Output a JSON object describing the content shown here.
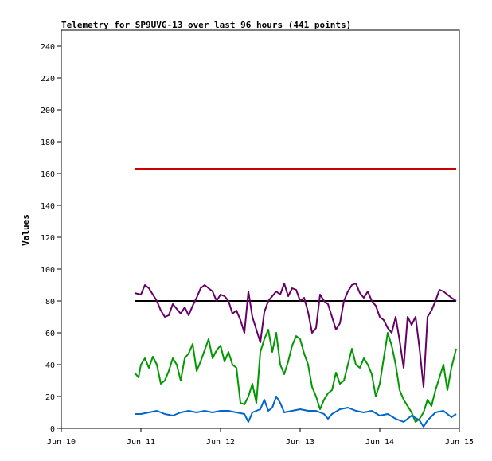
{
  "chart_data": {
    "type": "line",
    "title": "Telemetry for SP9UVG-13 over last 96 hours (441 points)",
    "xlabel": "",
    "ylabel": "Values",
    "xlim": [
      10.0,
      15.0
    ],
    "ylim": [
      0,
      250
    ],
    "x_ticks": [
      {
        "value": 10,
        "label": "Jun 10"
      },
      {
        "value": 11,
        "label": "Jun 11"
      },
      {
        "value": 12,
        "label": "Jun 12"
      },
      {
        "value": 13,
        "label": "Jun 13"
      },
      {
        "value": 14,
        "label": "Jun 14"
      },
      {
        "value": 15,
        "label": "Jun 15"
      }
    ],
    "y_ticks": [
      0,
      20,
      40,
      60,
      80,
      100,
      120,
      140,
      160,
      180,
      200,
      220,
      240
    ],
    "grid": false,
    "legend": "none",
    "series": [
      {
        "color": "#cc0000",
        "x": [
          10.92,
          14.96
        ],
        "y": [
          163,
          163
        ]
      },
      {
        "color": "#000000",
        "x": [
          10.92,
          14.96
        ],
        "y": [
          80,
          80
        ]
      },
      {
        "color": "#660066",
        "x": [
          10.92,
          11.0,
          11.05,
          11.1,
          11.15,
          11.2,
          11.25,
          11.3,
          11.35,
          11.4,
          11.45,
          11.5,
          11.55,
          11.6,
          11.65,
          11.7,
          11.75,
          11.8,
          11.85,
          11.9,
          11.95,
          12.0,
          12.05,
          12.1,
          12.15,
          12.2,
          12.25,
          12.3,
          12.35,
          12.4,
          12.45,
          12.5,
          12.55,
          12.6,
          12.65,
          12.7,
          12.75,
          12.8,
          12.85,
          12.9,
          12.95,
          13.0,
          13.05,
          13.1,
          13.15,
          13.2,
          13.25,
          13.3,
          13.35,
          13.4,
          13.45,
          13.5,
          13.55,
          13.6,
          13.65,
          13.7,
          13.75,
          13.8,
          13.85,
          13.9,
          13.95,
          14.0,
          14.05,
          14.1,
          14.15,
          14.2,
          14.25,
          14.3,
          14.35,
          14.4,
          14.45,
          14.5,
          14.55,
          14.6,
          14.65,
          14.7,
          14.75,
          14.8,
          14.85,
          14.9,
          14.96
        ],
        "y": [
          85,
          84,
          90,
          88,
          84,
          80,
          74,
          70,
          71,
          78,
          75,
          72,
          76,
          71,
          77,
          82,
          88,
          90,
          88,
          86,
          80,
          84,
          83,
          80,
          72,
          74,
          68,
          60,
          86,
          70,
          62,
          54,
          73,
          80,
          83,
          86,
          84,
          91,
          83,
          88,
          87,
          80,
          82,
          73,
          60,
          63,
          84,
          80,
          78,
          70,
          62,
          66,
          80,
          86,
          90,
          91,
          85,
          82,
          86,
          80,
          77,
          70,
          68,
          63,
          60,
          70,
          55,
          38,
          70,
          65,
          70,
          50,
          26,
          70,
          74,
          80,
          87,
          86,
          84,
          82,
          80
        ]
      },
      {
        "color": "#009900",
        "x": [
          10.92,
          10.97,
          11.0,
          11.05,
          11.1,
          11.15,
          11.2,
          11.25,
          11.3,
          11.35,
          11.4,
          11.45,
          11.5,
          11.55,
          11.6,
          11.65,
          11.7,
          11.75,
          11.8,
          11.85,
          11.9,
          11.95,
          12.0,
          12.05,
          12.1,
          12.15,
          12.2,
          12.25,
          12.3,
          12.35,
          12.4,
          12.45,
          12.5,
          12.55,
          12.6,
          12.65,
          12.7,
          12.75,
          12.8,
          12.85,
          12.9,
          12.95,
          13.0,
          13.05,
          13.1,
          13.15,
          13.2,
          13.25,
          13.3,
          13.35,
          13.4,
          13.45,
          13.5,
          13.55,
          13.6,
          13.65,
          13.7,
          13.75,
          13.8,
          13.85,
          13.9,
          13.95,
          14.0,
          14.05,
          14.1,
          14.15,
          14.2,
          14.25,
          14.3,
          14.35,
          14.4,
          14.45,
          14.5,
          14.55,
          14.6,
          14.65,
          14.7,
          14.75,
          14.8,
          14.85,
          14.9,
          14.96
        ],
        "y": [
          35,
          32,
          40,
          44,
          38,
          45,
          40,
          28,
          30,
          36,
          44,
          40,
          30,
          44,
          47,
          53,
          36,
          42,
          49,
          56,
          44,
          49,
          52,
          42,
          48,
          40,
          38,
          16,
          15,
          20,
          28,
          16,
          48,
          56,
          62,
          48,
          60,
          40,
          34,
          42,
          52,
          58,
          56,
          47,
          40,
          26,
          20,
          12,
          18,
          22,
          24,
          35,
          28,
          30,
          40,
          50,
          40,
          38,
          44,
          40,
          34,
          20,
          28,
          44,
          60,
          52,
          40,
          24,
          18,
          14,
          10,
          4,
          6,
          10,
          18,
          14,
          24,
          32,
          40,
          24,
          38,
          50
        ]
      },
      {
        "color": "#0066cc",
        "x": [
          10.92,
          11.0,
          11.1,
          11.2,
          11.3,
          11.4,
          11.5,
          11.6,
          11.7,
          11.8,
          11.9,
          12.0,
          12.1,
          12.2,
          12.3,
          12.35,
          12.4,
          12.5,
          12.55,
          12.6,
          12.65,
          12.7,
          12.75,
          12.8,
          12.9,
          13.0,
          13.1,
          13.2,
          13.3,
          13.35,
          13.4,
          13.5,
          13.6,
          13.7,
          13.8,
          13.9,
          14.0,
          14.1,
          14.2,
          14.3,
          14.4,
          14.5,
          14.55,
          14.6,
          14.7,
          14.8,
          14.9,
          14.96
        ],
        "y": [
          9,
          9,
          10,
          11,
          9,
          8,
          10,
          11,
          10,
          11,
          10,
          11,
          11,
          10,
          9,
          4,
          10,
          12,
          18,
          11,
          13,
          20,
          16,
          10,
          11,
          12,
          11,
          11,
          9,
          6,
          9,
          12,
          13,
          11,
          10,
          11,
          8,
          9,
          6,
          4,
          8,
          5,
          1,
          5,
          10,
          11,
          7,
          9
        ]
      }
    ]
  }
}
